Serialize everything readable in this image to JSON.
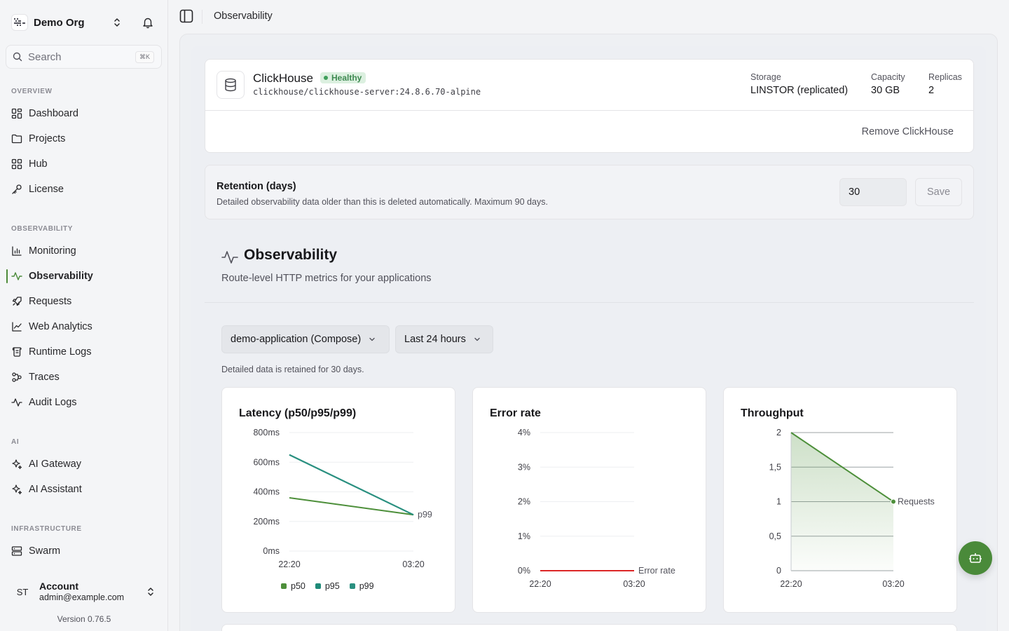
{
  "org": {
    "name": "Demo Org"
  },
  "search": {
    "placeholder": "Search",
    "shortcut": "⌘K"
  },
  "sidebar": {
    "sections": [
      {
        "label": "OVERVIEW",
        "items": [
          {
            "label": "Dashboard",
            "icon": "dashboard-icon"
          },
          {
            "label": "Projects",
            "icon": "folder-icon"
          },
          {
            "label": "Hub",
            "icon": "grid-icon"
          },
          {
            "label": "License",
            "icon": "key-icon"
          }
        ]
      },
      {
        "label": "OBSERVABILITY",
        "items": [
          {
            "label": "Monitoring",
            "icon": "bar-chart-icon"
          },
          {
            "label": "Observability",
            "icon": "activity-icon",
            "active": true
          },
          {
            "label": "Requests",
            "icon": "rocket-icon"
          },
          {
            "label": "Web Analytics",
            "icon": "line-chart-icon"
          },
          {
            "label": "Runtime Logs",
            "icon": "scroll-icon"
          },
          {
            "label": "Traces",
            "icon": "workflow-icon"
          },
          {
            "label": "Audit Logs",
            "icon": "activity-icon"
          }
        ]
      },
      {
        "label": "AI",
        "items": [
          {
            "label": "AI Gateway",
            "icon": "sparkles-icon"
          },
          {
            "label": "AI Assistant",
            "icon": "sparkles-icon"
          }
        ]
      },
      {
        "label": "INFRASTRUCTURE",
        "items": [
          {
            "label": "Swarm",
            "icon": "server-icon"
          }
        ]
      }
    ]
  },
  "account": {
    "initials": "ST",
    "name": "Account",
    "email": "admin@example.com"
  },
  "version": "Version 0.76.5",
  "header": {
    "title": "Observability"
  },
  "database": {
    "name": "ClickHouse",
    "status": "Healthy",
    "image": "clickhouse/clickhouse-server:24.8.6.70-alpine",
    "storage_label": "Storage",
    "storage_value": "LINSTOR (replicated)",
    "capacity_label": "Capacity",
    "capacity_value": "30 GB",
    "replicas_label": "Replicas",
    "replicas_value": "2",
    "remove_label": "Remove ClickHouse"
  },
  "retention": {
    "title": "Retention (days)",
    "description": "Detailed observability data older than this is deleted automatically. Maximum 90 days.",
    "value": "30",
    "save_label": "Save"
  },
  "observability": {
    "title": "Observability",
    "subtitle": "Route-level HTTP metrics for your applications",
    "app_select": "demo-application (Compose)",
    "range_select": "Last 24 hours",
    "retained_note": "Detailed data is retained for 30 days."
  },
  "colors": {
    "accent": "#4a8a3a",
    "p50": "#4d8f3a",
    "p95": "#1f8a78",
    "p99": "#2a9080",
    "error": "#dc2626",
    "healthy_bg": "#dcf0e0"
  },
  "chart_data": [
    {
      "type": "line",
      "title": "Latency (p50/p95/p99)",
      "x": [
        "22:20",
        "03:20"
      ],
      "y_ticks": [
        "800ms",
        "600ms",
        "400ms",
        "200ms",
        "0ms"
      ],
      "ylim": [
        0,
        800
      ],
      "series": [
        {
          "name": "p50",
          "values": [
            360,
            245
          ]
        },
        {
          "name": "p95",
          "values": [
            650,
            245
          ]
        },
        {
          "name": "p99",
          "values": [
            650,
            245
          ]
        }
      ],
      "end_label": "p99"
    },
    {
      "type": "line",
      "title": "Error rate",
      "x": [
        "22:20",
        "03:20"
      ],
      "y_ticks": [
        "4%",
        "3%",
        "2%",
        "1%",
        "0%"
      ],
      "ylim": [
        0,
        4
      ],
      "series": [
        {
          "name": "Error rate",
          "values": [
            0,
            0
          ]
        }
      ]
    },
    {
      "type": "area",
      "title": "Throughput",
      "x": [
        "22:20",
        "03:20"
      ],
      "y_ticks": [
        "2",
        "1,5",
        "1",
        "0,5",
        "0"
      ],
      "ylim": [
        0,
        2
      ],
      "series": [
        {
          "name": "Requests",
          "values": [
            2,
            1
          ]
        }
      ]
    }
  ]
}
